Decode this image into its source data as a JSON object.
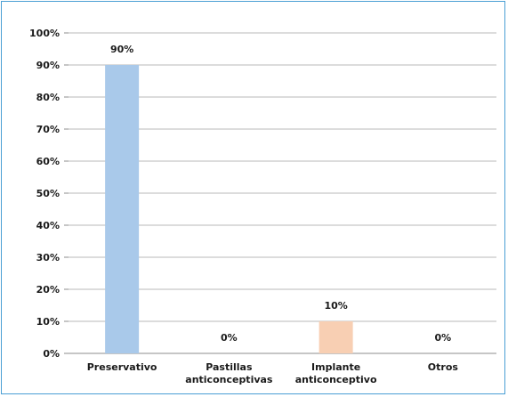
{
  "chart_data": {
    "type": "bar",
    "categories": [
      [
        "Preservativo"
      ],
      [
        "Pastillas",
        "anticonceptivas"
      ],
      [
        "Implante",
        "anticonceptivo"
      ],
      [
        "Otros"
      ]
    ],
    "values": [
      90,
      0,
      10,
      0
    ],
    "data_labels": [
      "90%",
      "0%",
      "10%",
      "0%"
    ],
    "bar_colors": [
      "#a9c9ea",
      "#a9c9ea",
      "#f8cfb3",
      "#a9c9ea"
    ],
    "y_ticks": [
      "0%",
      "10%",
      "20%",
      "30%",
      "40%",
      "50%",
      "60%",
      "70%",
      "80%",
      "90%",
      "100%"
    ],
    "ylim": [
      0,
      100
    ],
    "grid": true,
    "title": "",
    "xlabel": "",
    "ylabel": ""
  }
}
